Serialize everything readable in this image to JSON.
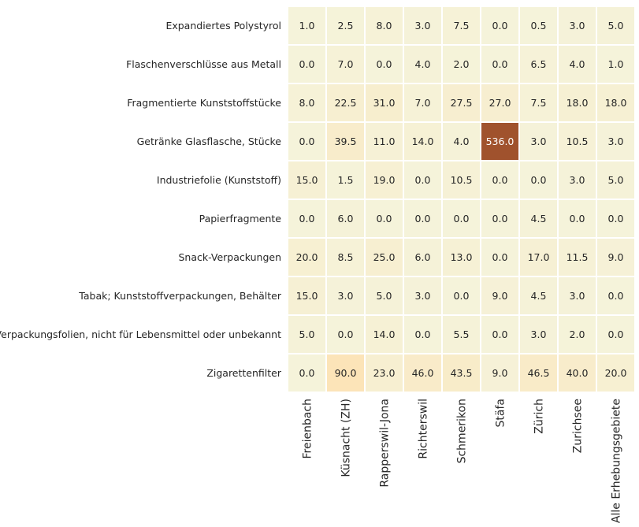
{
  "chart_data": {
    "type": "heatmap",
    "rows": [
      "Expandiertes Polystyrol",
      "Flaschenverschlüsse aus Metall",
      "Fragmentierte Kunststoffstücke",
      "Getränke Glasflasche, Stücke",
      "Industriefolie (Kunststoff)",
      "Papierfragmente",
      "Snack-Verpackungen",
      "Tabak; Kunststoffverpackungen, Behälter",
      "Verpackungsfolien, nicht für Lebensmittel oder unbekannt",
      "Zigarettenfilter"
    ],
    "columns": [
      "Freienbach",
      "Küsnacht (ZH)",
      "Rapperswil-Jona",
      "Richterswil",
      "Schmerikon",
      "Stäfa",
      "Zürich",
      "Zurichsee",
      "Alle Erhebungsgebiete"
    ],
    "values": [
      [
        1.0,
        2.5,
        8.0,
        3.0,
        7.5,
        0.0,
        0.5,
        3.0,
        5.0
      ],
      [
        0.0,
        7.0,
        0.0,
        4.0,
        2.0,
        0.0,
        6.5,
        4.0,
        1.0
      ],
      [
        8.0,
        22.5,
        31.0,
        7.0,
        27.5,
        27.0,
        7.5,
        18.0,
        18.0
      ],
      [
        0.0,
        39.5,
        11.0,
        14.0,
        4.0,
        536.0,
        3.0,
        10.5,
        3.0
      ],
      [
        15.0,
        1.5,
        19.0,
        0.0,
        10.5,
        0.0,
        0.0,
        3.0,
        5.0
      ],
      [
        0.0,
        6.0,
        0.0,
        0.0,
        0.0,
        0.0,
        4.5,
        0.0,
        0.0
      ],
      [
        20.0,
        8.5,
        25.0,
        6.0,
        13.0,
        0.0,
        17.0,
        11.5,
        9.0
      ],
      [
        15.0,
        3.0,
        5.0,
        3.0,
        0.0,
        9.0,
        4.5,
        3.0,
        0.0
      ],
      [
        5.0,
        0.0,
        14.0,
        0.0,
        5.5,
        0.0,
        3.0,
        2.0,
        0.0
      ],
      [
        0.0,
        90.0,
        23.0,
        46.0,
        43.5,
        9.0,
        46.5,
        40.0,
        20.0
      ]
    ],
    "value_format": "one-decimal",
    "colormap": {
      "low": "#f5f3da",
      "mid": "#fde2b4",
      "high": "#a0522d",
      "mid_value": 100,
      "max_value": 536
    },
    "cell_border_color": "#ffffff",
    "text_color_dark": "#262626",
    "text_color_light": "#ffffff",
    "grid": false,
    "legend": "none"
  }
}
